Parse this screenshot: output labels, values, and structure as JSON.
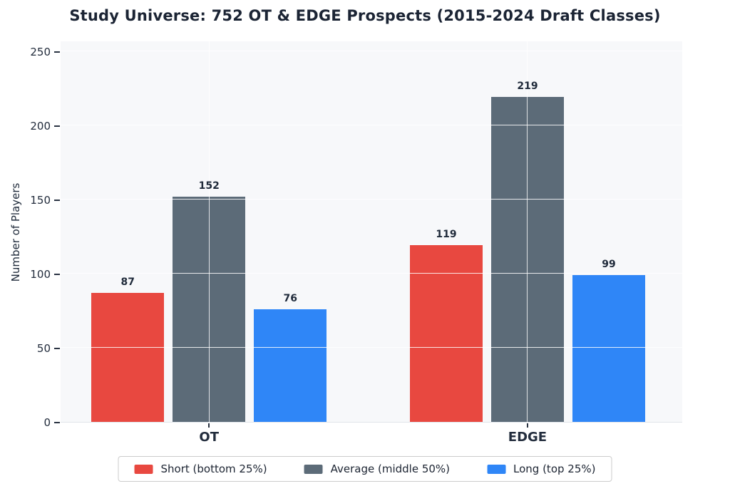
{
  "title": "Study Universe: 752 OT & EDGE Prospects (2015-2024 Draft Classes)",
  "chart_data": {
    "type": "bar",
    "title": "Study Universe: 752 OT & EDGE Prospects (2015-2024 Draft Classes)",
    "categories": [
      "OT",
      "EDGE"
    ],
    "series": [
      {
        "name": "Short (bottom 25%)",
        "color": "#e84840",
        "values": [
          87,
          119
        ]
      },
      {
        "name": "Average (middle 50%)",
        "color": "#5c6b78",
        "values": [
          152,
          219
        ]
      },
      {
        "name": "Long (top 25%)",
        "color": "#2f86f7",
        "values": [
          76,
          99
        ]
      }
    ],
    "xlabel": "",
    "ylabel": "Number of Players",
    "ylim": [
      0,
      257
    ],
    "yticks": [
      0,
      50,
      100,
      150,
      200,
      250
    ],
    "grid": true,
    "legend_position": "bottom",
    "plot_background": "#f7f8fa"
  },
  "colors": {
    "title_text": "#1b2434",
    "tick_text": "#232d3d",
    "value_label_text": "#1f2a3a",
    "legend_border": "#cccccc",
    "figure_background": "#ffffff"
  }
}
